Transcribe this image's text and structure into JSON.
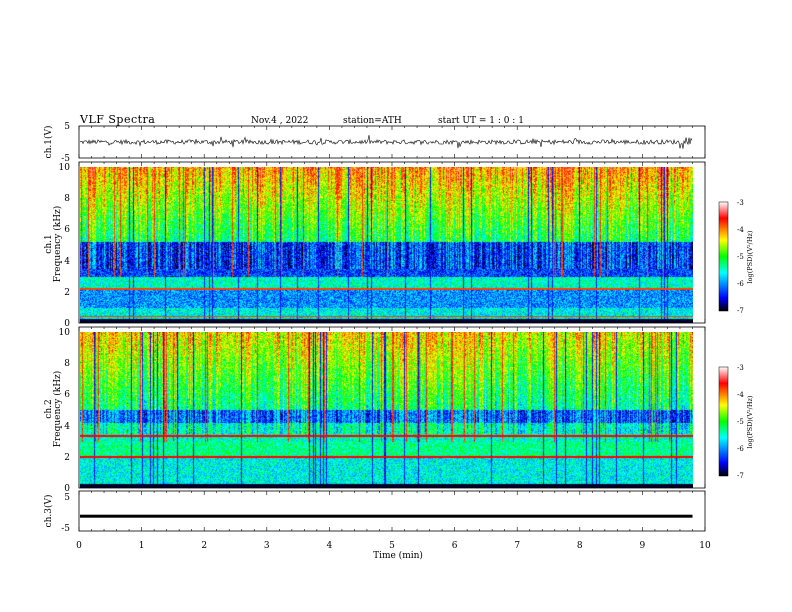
{
  "header": {
    "title": "VLF  Spectra",
    "date": "Nov.4  , 2022",
    "station": "station=ATH",
    "start": "start  UT  =   1  : 0   : 1"
  },
  "colors": {
    "background": "#ffffff",
    "axis": "#000000",
    "trace": "#000000"
  },
  "chart_data": [
    {
      "type": "line",
      "title": "",
      "ylabel": "ch.1(V)",
      "ylim": [
        -5,
        5
      ],
      "y_ticks": [
        "5",
        "-5"
      ],
      "description_series": "waveform, amplitude approx -1 to +1 V, noisy",
      "xlim": [
        0,
        10
      ]
    },
    {
      "type": "heatmap",
      "ylabel_line1": "ch.1",
      "ylabel_line2": "Frequency (kHz)",
      "ylim": [
        0,
        10
      ],
      "y_ticks": [
        "0",
        "2",
        "4",
        "6",
        "8",
        "10"
      ],
      "xlim": [
        0,
        9.8
      ],
      "colorbar": {
        "label": "log(PSD)(V²/Hz)",
        "range": [
          -7,
          -3
        ],
        "ticks": [
          "-3",
          "-4",
          "-5",
          "-6",
          "-7"
        ],
        "colormap": [
          "#000000",
          "#0000ff",
          "#00ffff",
          "#00ff00",
          "#ffff00",
          "#ff0000",
          "#ffffff"
        ]
      }
    },
    {
      "type": "heatmap",
      "ylabel_line1": "ch.2",
      "ylabel_line2": "Frequency (kHz)",
      "ylim": [
        0,
        10
      ],
      "y_ticks": [
        "0",
        "2",
        "4",
        "6",
        "8",
        "10"
      ],
      "xlim": [
        0,
        9.8
      ],
      "colorbar": {
        "label": "log(PSD)(V²/Hz)",
        "range": [
          -7,
          -3
        ],
        "ticks": [
          "-3",
          "-4",
          "-5",
          "-6",
          "-7"
        ],
        "colormap": [
          "#000000",
          "#0000ff",
          "#00ffff",
          "#00ff00",
          "#ffff00",
          "#ff0000",
          "#ffffff"
        ]
      }
    },
    {
      "type": "line",
      "ylabel": "ch.3(V)",
      "ylim": [
        -5,
        5
      ],
      "y_ticks": [
        "5",
        "-5"
      ],
      "xlim": [
        0,
        10
      ],
      "constant_level": -1.3
    }
  ],
  "xaxis": {
    "label": "Time  (min)",
    "range": [
      0,
      10
    ],
    "ticks": [
      "0",
      "1",
      "2",
      "3",
      "4",
      "5",
      "6",
      "7",
      "8",
      "9",
      "10"
    ]
  }
}
